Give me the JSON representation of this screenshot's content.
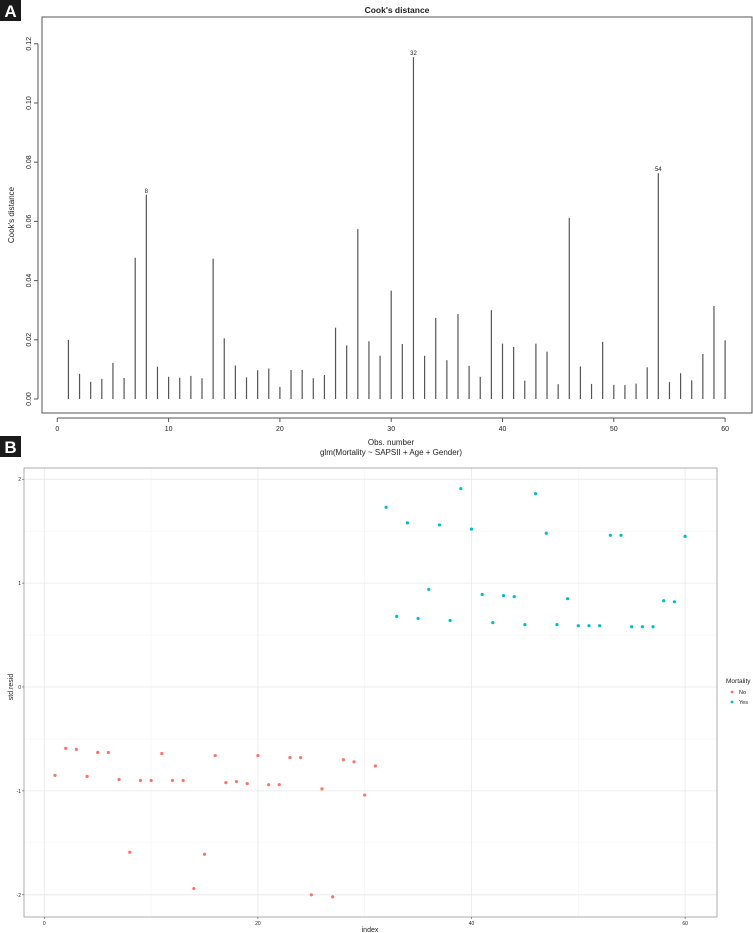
{
  "panels": {
    "a": "A",
    "b": "B"
  },
  "chart_data": [
    {
      "type": "bar",
      "title": "Cook's distance",
      "xlabel": "Obs. number",
      "subtitle": "glm(Mortality ~ SAPSII + Age + Gender)",
      "ylabel": "Cook's distance",
      "xlim": [
        -1,
        62
      ],
      "ylim": [
        0,
        0.125
      ],
      "x_ticks": [
        "0",
        "10",
        "20",
        "30",
        "40",
        "50",
        "60"
      ],
      "y_ticks": [
        "0.00",
        "0.02",
        "0.04",
        "0.06",
        "0.08",
        "0.10",
        "0.12"
      ],
      "grid": false,
      "color": "#555555",
      "labeled_points": [
        8,
        32,
        54
      ],
      "x": [
        1,
        2,
        3,
        4,
        5,
        6,
        7,
        8,
        9,
        10,
        11,
        12,
        13,
        14,
        15,
        16,
        17,
        18,
        19,
        20,
        21,
        22,
        23,
        24,
        25,
        26,
        27,
        28,
        29,
        30,
        31,
        32,
        33,
        34,
        35,
        36,
        37,
        38,
        39,
        40,
        41,
        42,
        43,
        44,
        45,
        46,
        47,
        48,
        49,
        50,
        51,
        52,
        53,
        54,
        55,
        56,
        57,
        58,
        59,
        60
      ],
      "values": [
        0.02,
        0.0085,
        0.0058,
        0.0068,
        0.0122,
        0.0071,
        0.0477,
        0.069,
        0.0109,
        0.0075,
        0.0072,
        0.0078,
        0.007,
        0.0474,
        0.0205,
        0.0113,
        0.0073,
        0.0097,
        0.0103,
        0.0041,
        0.0098,
        0.0098,
        0.007,
        0.0081,
        0.0241,
        0.0181,
        0.0574,
        0.0195,
        0.0146,
        0.0366,
        0.0186,
        0.1155,
        0.0146,
        0.0274,
        0.0131,
        0.0287,
        0.0112,
        0.0075,
        0.03,
        0.0187,
        0.0176,
        0.0062,
        0.0187,
        0.016,
        0.005,
        0.0612,
        0.011,
        0.0051,
        0.0193,
        0.0048,
        0.0047,
        0.0052,
        0.0107,
        0.0763,
        0.0057,
        0.0087,
        0.0063,
        0.0152,
        0.0314,
        0.0198
      ]
    },
    {
      "type": "scatter",
      "xlabel": "index",
      "ylabel": "std.resid",
      "xlim": [
        -3,
        62
      ],
      "ylim": [
        -2.2,
        2.1
      ],
      "x_ticks": [
        "0",
        "20",
        "40",
        "60"
      ],
      "y_ticks": [
        "-2",
        "-1",
        "0",
        "1",
        "2"
      ],
      "grid": true,
      "legend": {
        "title": "Mortality",
        "placement": "right"
      },
      "series": [
        {
          "name": "No",
          "color": "#F8766D",
          "x": [
            1,
            2,
            3,
            4,
            5,
            6,
            7,
            8,
            9,
            10,
            11,
            12,
            13,
            14,
            15,
            16,
            17,
            18,
            19,
            20,
            21,
            22,
            23,
            24,
            25,
            26,
            27,
            28,
            29,
            30,
            31
          ],
          "y": [
            -0.85,
            -0.59,
            -0.6,
            -0.86,
            -0.63,
            -0.63,
            -0.89,
            -1.59,
            -0.9,
            -0.9,
            -0.64,
            -0.9,
            -0.9,
            -1.94,
            -1.61,
            -0.66,
            -0.92,
            -0.91,
            -0.93,
            -0.66,
            -0.94,
            -0.94,
            -0.68,
            -0.68,
            -2.0,
            -0.98,
            -2.02,
            -0.7,
            -0.72,
            -1.04,
            -0.76
          ]
        },
        {
          "name": "Yes",
          "color": "#00BFC4",
          "x": [
            32,
            33,
            34,
            35,
            36,
            37,
            38,
            39,
            40,
            41,
            42,
            43,
            44,
            45,
            46,
            47,
            48,
            49,
            50,
            51,
            52,
            53,
            54,
            55,
            56,
            57,
            58,
            59,
            60
          ],
          "y": [
            1.73,
            0.68,
            1.58,
            0.66,
            0.94,
            1.56,
            0.64,
            1.91,
            1.52,
            0.89,
            0.62,
            0.88,
            0.87,
            0.6,
            1.86,
            1.48,
            0.6,
            0.85,
            0.59,
            0.59,
            0.59,
            1.46,
            1.46,
            0.58,
            0.58,
            0.58,
            0.83,
            0.82,
            1.45
          ]
        }
      ]
    }
  ]
}
